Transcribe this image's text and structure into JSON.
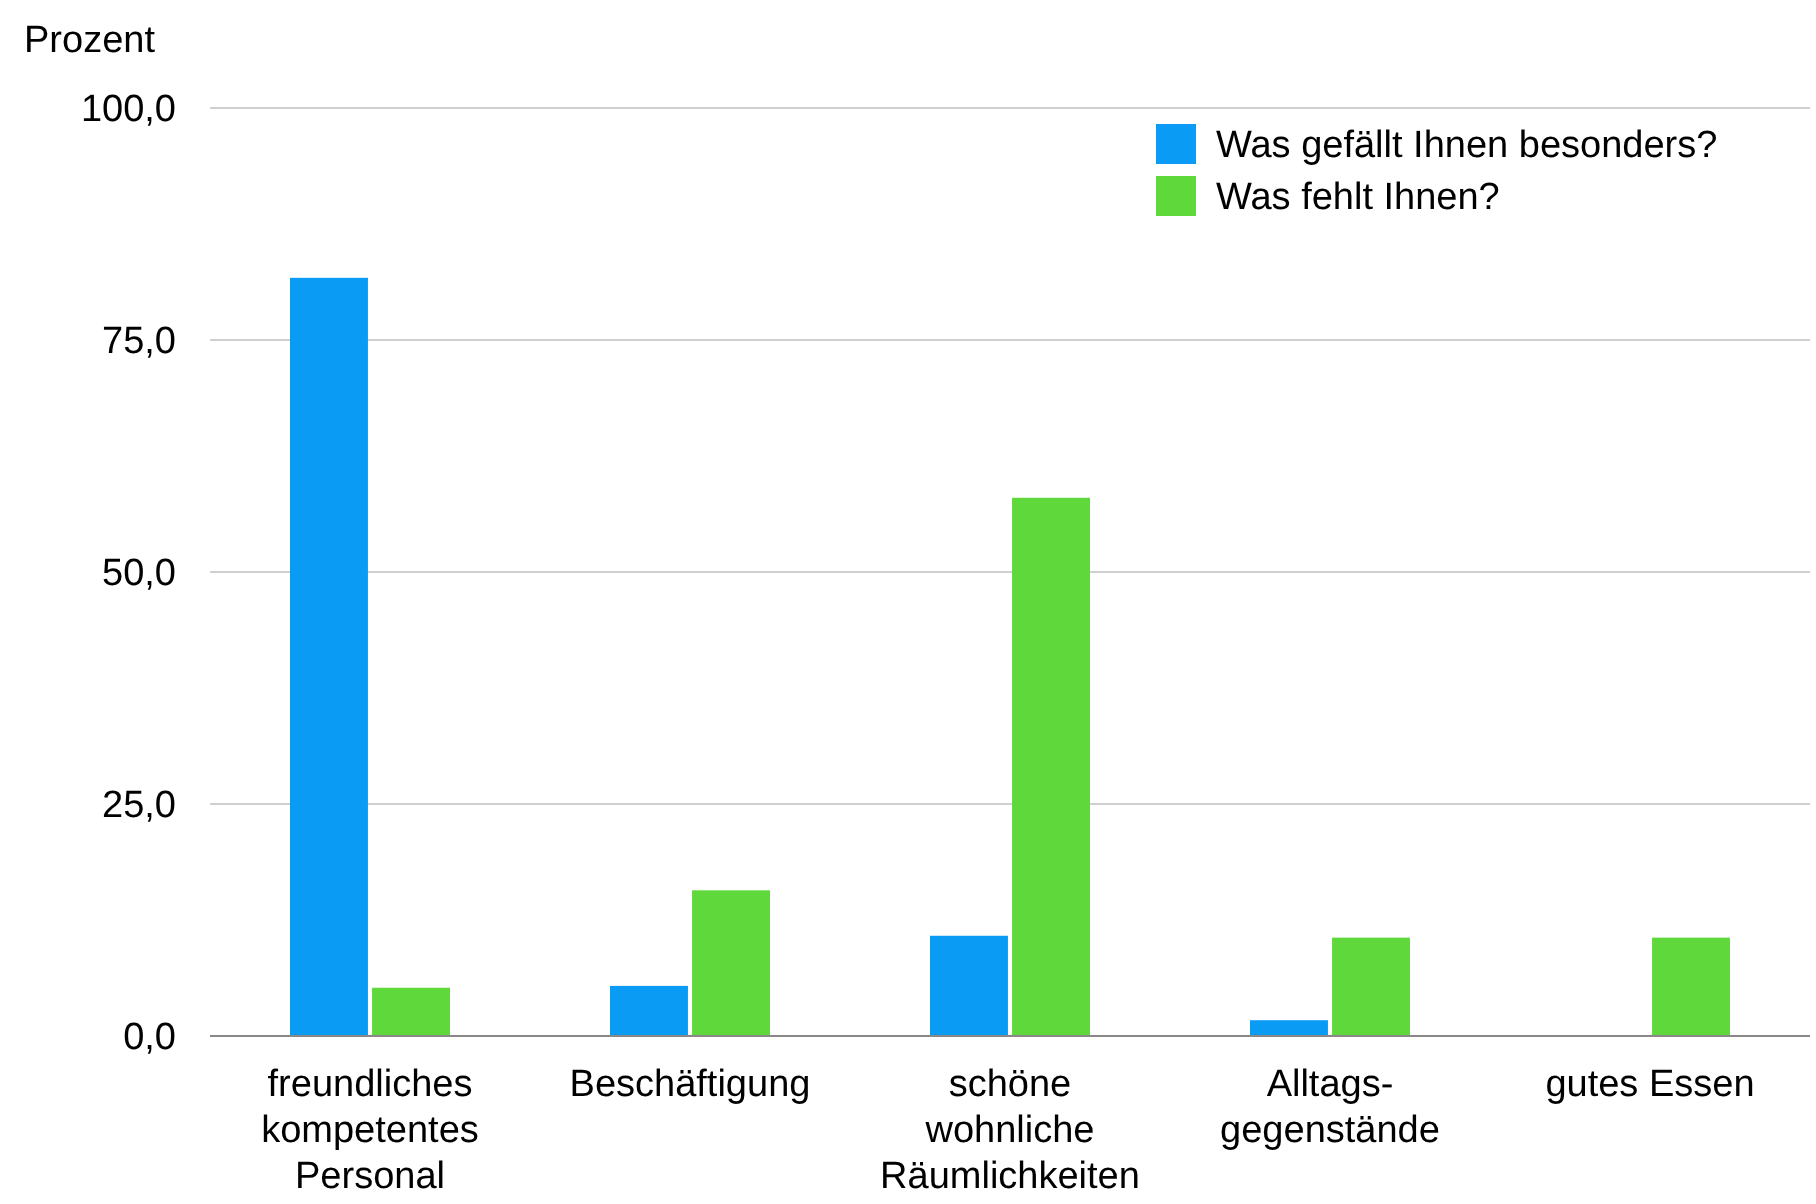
{
  "chart_data": {
    "type": "bar",
    "ylabel": "Prozent",
    "categories": [
      "freundliches\nkompetentes\nPersonal",
      "Beschäftigung",
      "schöne\nwohnliche\nRäumlichkeiten",
      "Alltags-\ngegenstände",
      "gutes Essen"
    ],
    "series": [
      {
        "name": "Was gefällt Ihnen besonders?",
        "color": "#0a9cf5",
        "values": [
          81.7,
          5.4,
          10.8,
          1.7,
          0
        ]
      },
      {
        "name": "Was fehlt Ihnen?",
        "color": "#5fd83c",
        "values": [
          5.2,
          15.7,
          58.0,
          10.6,
          10.6
        ]
      }
    ],
    "ylim": [
      0,
      100
    ],
    "yticks": [
      {
        "value": 0,
        "label": "0,0"
      },
      {
        "value": 25,
        "label": "25,0"
      },
      {
        "value": 50,
        "label": "50,0"
      },
      {
        "value": 75,
        "label": "75,0"
      },
      {
        "value": 100,
        "label": "100,0"
      }
    ],
    "grid": "y",
    "legend": "top right"
  }
}
